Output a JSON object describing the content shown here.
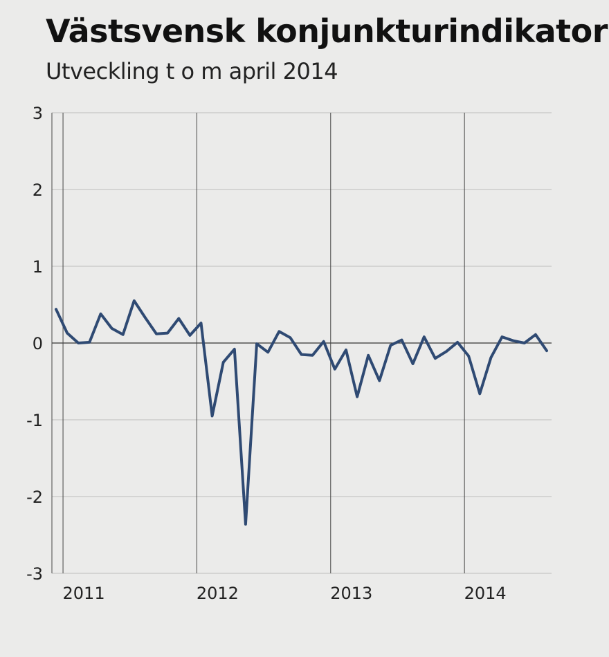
{
  "chart_data": {
    "type": "line",
    "title": "Västsvensk konjunkturindikator",
    "subtitle": "Utveckling t o m april 2014",
    "xlabel": "",
    "ylabel": "",
    "ylim": [
      -3,
      3
    ],
    "y_ticks": [
      "3",
      "2",
      "1",
      "0",
      "-1",
      "-2",
      "-3"
    ],
    "y_tick_values": [
      3,
      2,
      1,
      0,
      -1,
      -2,
      -3
    ],
    "x_ticks": [
      "2011",
      "2012",
      "2013",
      "2014"
    ],
    "grid": true,
    "line_color": "#2f4a73",
    "series": [
      {
        "values": [
          0.44,
          0.13,
          0.0,
          0.01,
          0.38,
          0.19,
          0.11,
          0.55,
          0.33,
          0.12,
          0.13,
          0.32,
          0.1,
          0.26,
          -0.95,
          -0.25,
          -0.08,
          -2.36,
          -0.01,
          -0.12,
          0.15,
          0.07,
          -0.15,
          -0.16,
          0.02,
          -0.34,
          -0.09,
          -0.7,
          -0.16,
          -0.49,
          -0.03,
          0.04,
          -0.27,
          0.08,
          -0.2,
          -0.11,
          0.01,
          -0.17,
          -0.66,
          -0.19,
          0.08,
          0.03,
          0.0,
          0.11,
          -0.1
        ]
      }
    ]
  }
}
